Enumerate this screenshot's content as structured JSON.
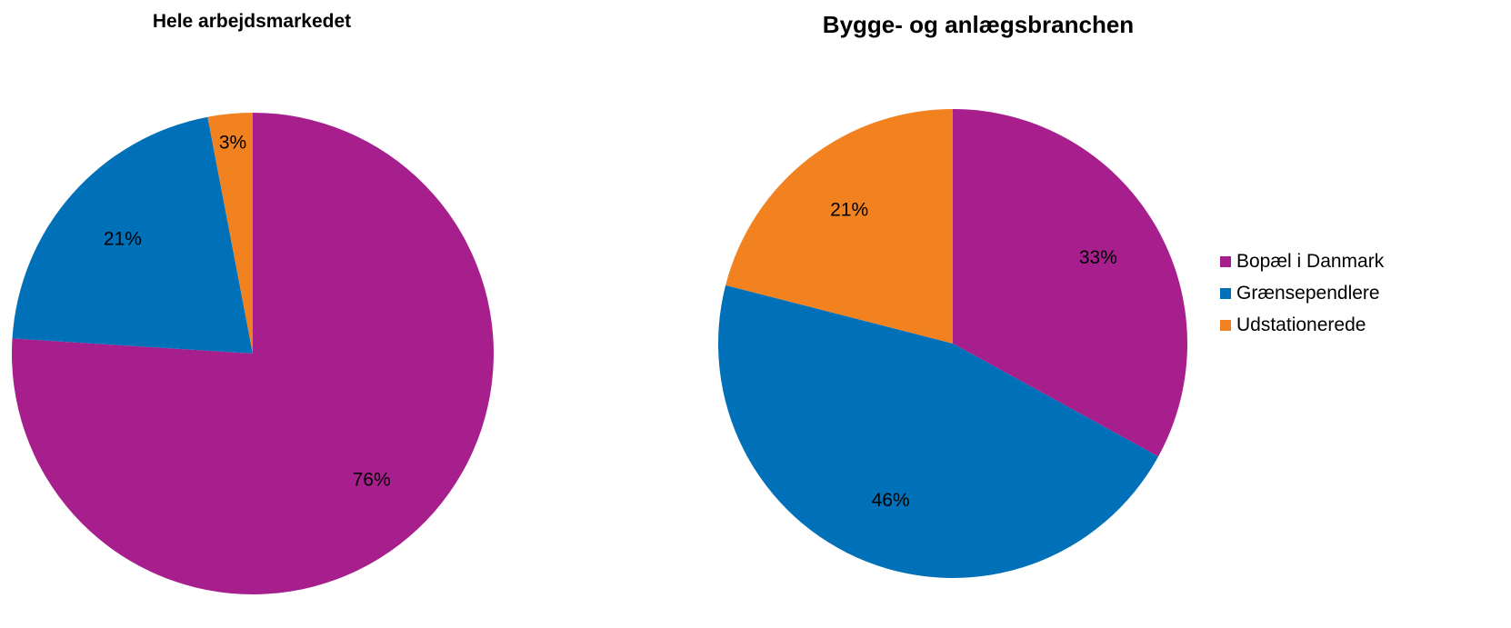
{
  "chart_data": [
    {
      "type": "pie",
      "title": "Hele arbejdsmarkedet",
      "categories": [
        "Bopæl i Danmark",
        "Grænsependlere",
        "Udstationerede"
      ],
      "values": [
        76,
        21,
        3
      ],
      "labels": [
        "76%",
        "21%",
        "3%"
      ]
    },
    {
      "type": "pie",
      "title": "Bygge- og anlægsbranchen",
      "categories": [
        "Bopæl i Danmark",
        "Grænsependlere",
        "Udstationerede"
      ],
      "values": [
        33,
        46,
        21
      ],
      "labels": [
        "33%",
        "46%",
        "21%"
      ]
    }
  ],
  "legend": {
    "placement": "right",
    "items": [
      {
        "label": "Bopæl i Danmark",
        "color": "#A61F8C"
      },
      {
        "label": "Grænsependlere",
        "color": "#0070B8"
      },
      {
        "label": "Udstationerede",
        "color": "#F28220"
      }
    ]
  }
}
